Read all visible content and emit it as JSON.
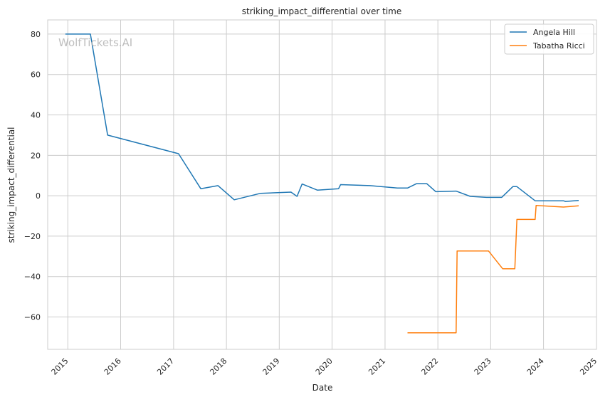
{
  "chart_data": {
    "type": "line",
    "title": "striking_impact_differential over time",
    "xlabel": "Date",
    "ylabel": "striking_impact_differential",
    "watermark": "WolfTickets.AI",
    "x_ticks": [
      "2015",
      "2016",
      "2017",
      "2018",
      "2019",
      "2020",
      "2021",
      "2022",
      "2023",
      "2024",
      "2025"
    ],
    "y_ticks": [
      "80",
      "60",
      "40",
      "20",
      "0",
      "−20",
      "−40",
      "−60"
    ],
    "xlim": [
      "2014-08-15",
      "2025-01-01"
    ],
    "ylim": [
      -76,
      87
    ],
    "grid": true,
    "legend_position": "top-right",
    "series": [
      {
        "name": "Angela Hill",
        "color": "#1f77b4",
        "points": [
          [
            "2014-12-15",
            80
          ],
          [
            "2015-06-06",
            80
          ],
          [
            "2015-10-03",
            30
          ],
          [
            "2017-02-04",
            20.8
          ],
          [
            "2017-07-08",
            3.5
          ],
          [
            "2017-11-04",
            5
          ],
          [
            "2018-02-24",
            -2
          ],
          [
            "2018-08-25",
            1.2
          ],
          [
            "2019-03-23",
            1.8
          ],
          [
            "2019-05-04",
            -0.3
          ],
          [
            "2019-06-08",
            5.8
          ],
          [
            "2019-09-21",
            2.8
          ],
          [
            "2020-02-15",
            3.5
          ],
          [
            "2020-02-29",
            5.5
          ],
          [
            "2020-09-19",
            5
          ],
          [
            "2021-03-27",
            3.8
          ],
          [
            "2021-06-05",
            3.8
          ],
          [
            "2021-08-07",
            6
          ],
          [
            "2021-10-16",
            6
          ],
          [
            "2021-12-18",
            2
          ],
          [
            "2022-05-07",
            2.3
          ],
          [
            "2022-08-13",
            -0.3
          ],
          [
            "2022-12-03",
            -0.8
          ],
          [
            "2023-03-18",
            -0.8
          ],
          [
            "2023-06-03",
            4.5
          ],
          [
            "2023-07-01",
            4.5
          ],
          [
            "2023-11-04",
            -2.5
          ],
          [
            "2024-05-18",
            -2.5
          ],
          [
            "2024-06-01",
            -2.8
          ],
          [
            "2024-08-31",
            -2.3
          ]
        ]
      },
      {
        "name": "Tabatha Ricci",
        "color": "#ff7f0e",
        "points": [
          [
            "2021-06-05",
            -67.8
          ],
          [
            "2022-05-07",
            -67.8
          ],
          [
            "2022-05-14",
            -27.3
          ],
          [
            "2022-12-17",
            -27.3
          ],
          [
            "2023-03-25",
            -36.1
          ],
          [
            "2023-06-17",
            -36.1
          ],
          [
            "2023-07-01",
            -11.7
          ],
          [
            "2023-11-04",
            -11.7
          ],
          [
            "2023-11-11",
            -4.8
          ],
          [
            "2024-05-18",
            -5.6
          ],
          [
            "2024-08-31",
            -5
          ]
        ]
      }
    ]
  }
}
